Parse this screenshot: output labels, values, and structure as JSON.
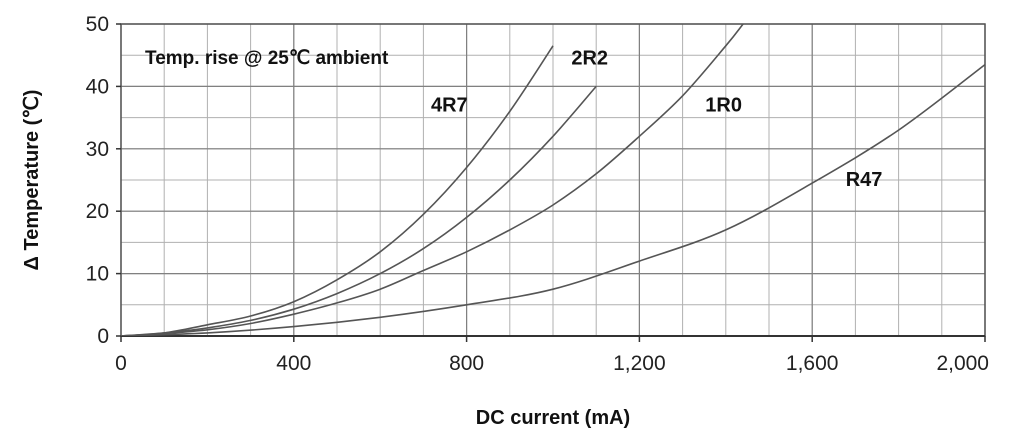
{
  "chart_data": {
    "type": "line",
    "title": "",
    "annotation": "Temp. rise @ 25℃ ambient",
    "xlabel": "DC current (mA)",
    "ylabel": "Δ Temperature (℃)",
    "xlim": [
      0,
      2000
    ],
    "ylim": [
      0,
      50
    ],
    "x_ticks": [
      0,
      400,
      800,
      1200,
      1600,
      2000
    ],
    "x_tick_labels": [
      "0",
      "400",
      "800",
      "1,200",
      "1,600",
      "2,000"
    ],
    "y_ticks": [
      0,
      10,
      20,
      30,
      40,
      50
    ],
    "y_tick_labels": [
      "0",
      "10",
      "20",
      "30",
      "40",
      "50"
    ],
    "grid": true,
    "minor_x_step": 100,
    "minor_y_step": 5,
    "colors": {
      "line": "#555555",
      "grid": "#b0b0b0",
      "axis": "#555555"
    },
    "series": [
      {
        "name": "4R7",
        "x": [
          0,
          100,
          200,
          300,
          400,
          500,
          600,
          700,
          800,
          900,
          1000
        ],
        "y": [
          0,
          0.5,
          1.8,
          3.2,
          5.5,
          9,
          13.5,
          19.5,
          27,
          36,
          46.5
        ]
      },
      {
        "name": "2R2",
        "x": [
          0,
          100,
          200,
          300,
          400,
          500,
          600,
          700,
          800,
          900,
          1000,
          1100
        ],
        "y": [
          0,
          0.5,
          1.3,
          2.5,
          4.3,
          6.8,
          10,
          14,
          19,
          25,
          32,
          40
        ]
      },
      {
        "name": "1R0",
        "x": [
          0,
          100,
          200,
          300,
          400,
          500,
          600,
          700,
          800,
          900,
          1000,
          1100,
          1200,
          1300,
          1400,
          1440
        ],
        "y": [
          0,
          0.4,
          1.0,
          2.0,
          3.5,
          5.3,
          7.5,
          10.5,
          13.5,
          17,
          21,
          26,
          32,
          38.5,
          46.5,
          50
        ]
      },
      {
        "name": "R47",
        "x": [
          0,
          200,
          400,
          600,
          800,
          1000,
          1200,
          1400,
          1600,
          1800,
          2000
        ],
        "y": [
          0,
          0.5,
          1.5,
          3,
          5,
          7.5,
          12,
          17,
          24.5,
          33,
          43.5
        ]
      }
    ],
    "series_labels": [
      {
        "name": "4R7",
        "x": 760,
        "y": 36
      },
      {
        "name": "2R2",
        "x": 1085,
        "y": 43.5
      },
      {
        "name": "1R0",
        "x": 1395,
        "y": 36
      },
      {
        "name": "R47",
        "x": 1720,
        "y": 24
      }
    ]
  }
}
